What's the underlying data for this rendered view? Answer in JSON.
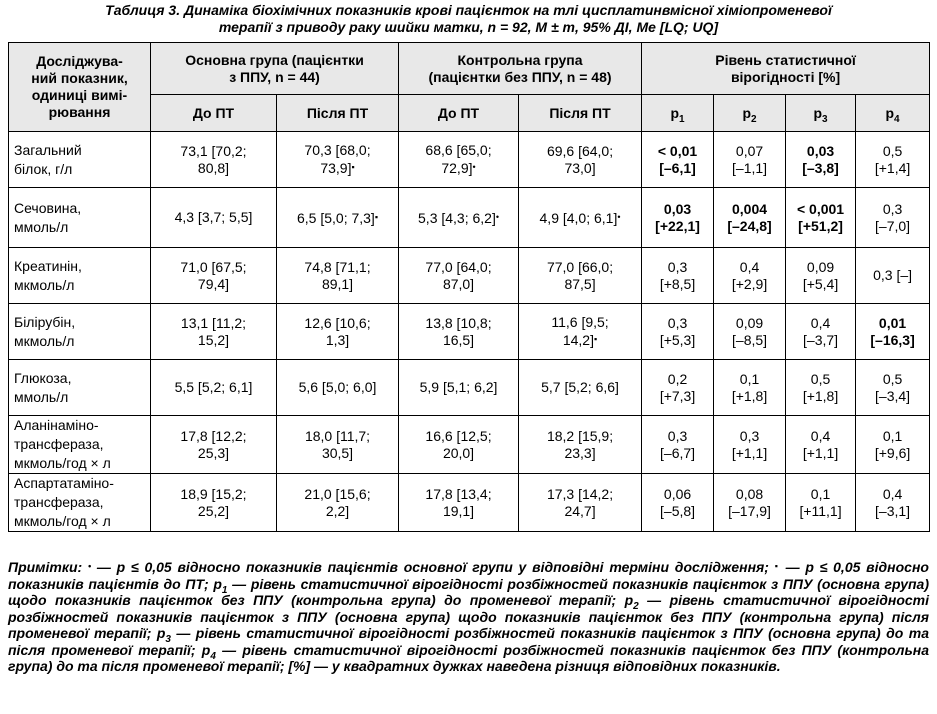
{
  "caption": {
    "line1": "Таблиця 3. Динаміка біохімічних показників крові пацієнток на тлі цисплатинвмісної хіміопроменевої",
    "line2": "терапії з приводу раку шийки матки, n = 92, M ± m, 95% ДІ, Me [LQ; UQ]"
  },
  "header": {
    "indicator": [
      "Досліджува-",
      "ний показник,",
      "одиниці вимі-",
      "рювання"
    ],
    "main_group": [
      "Основна група (пацієнтки",
      "з ППУ, n = 44)"
    ],
    "control_group": [
      "Контрольна група",
      "(пацієнтки без ППУ, n = 48)"
    ],
    "significance": [
      "Рівень статистичної",
      "вірогідності [%]"
    ],
    "before": "До ПТ",
    "after": "Після ПТ",
    "p": "p",
    "p_subs": [
      "1",
      "2",
      "3",
      "4"
    ]
  },
  "rows": [
    {
      "ind": [
        "Загальний",
        "білок, г/л"
      ],
      "mb": [
        "73,1 [70,2;",
        "80,8]"
      ],
      "ma": [
        "70,3 [68,0;",
        "73,9]"
      ],
      "ma_mark": "▪",
      "cb": [
        "68,6 [65,0;",
        "72,9]"
      ],
      "cb_mark": "•",
      "ca": [
        "69,6 [64,0;",
        "73,0]"
      ],
      "p1": [
        "< 0,01",
        "[–6,1]"
      ],
      "p1_bold": true,
      "p2": [
        "0,07",
        "[–1,1]"
      ],
      "p2_bold": false,
      "p3": [
        "0,03",
        "[–3,8]"
      ],
      "p3_bold": true,
      "p4": [
        "0,5",
        "[+1,4]"
      ],
      "p4_bold": false
    },
    {
      "ind": [
        "Сечовина,",
        "ммоль/л"
      ],
      "mb": [
        "4,3 [3,7; 5,5]"
      ],
      "ma": [
        "6,5 [5,0; 7,3]"
      ],
      "ma_mark": "▪",
      "cb": [
        "5,3 [4,3; 6,2]"
      ],
      "cb_mark": "•",
      "ca": [
        "4,9 [4,0; 6,1]"
      ],
      "ca_mark": "•",
      "p1": [
        "0,03",
        "[+22,1]"
      ],
      "p1_bold": true,
      "p2": [
        "0,004",
        "[–24,8]"
      ],
      "p2_bold": true,
      "p3": [
        "< 0,001",
        "[+51,2]"
      ],
      "p3_bold": true,
      "p4": [
        "0,3",
        "[–7,0]"
      ],
      "p4_bold": false
    },
    {
      "ind": [
        "Креатинін,",
        "мкмоль/л"
      ],
      "mb": [
        "71,0 [67,5;",
        "79,4]"
      ],
      "ma": [
        "74,8 [71,1;",
        "89,1]"
      ],
      "cb": [
        "77,0 [64,0;",
        "87,0]"
      ],
      "ca": [
        "77,0 [66,0;",
        "87,5]"
      ],
      "p1": [
        "0,3",
        "[+8,5]"
      ],
      "p1_bold": false,
      "p2": [
        "0,4",
        "[+2,9]"
      ],
      "p2_bold": false,
      "p3": [
        "0,09",
        "[+5,4]"
      ],
      "p3_bold": false,
      "p4": [
        "0,3 [–]"
      ],
      "p4_bold": false
    },
    {
      "ind": [
        "Білірубін,",
        "мкмоль/л"
      ],
      "mb": [
        "13,1 [11,2;",
        "15,2]"
      ],
      "ma": [
        "12,6 [10,6;",
        "1,3]"
      ],
      "cb": [
        "13,8 [10,8;",
        "16,5]"
      ],
      "ca": [
        "11,6 [9,5;",
        "14,2]"
      ],
      "ca_mark": "▪",
      "p1": [
        "0,3",
        "[+5,3]"
      ],
      "p1_bold": false,
      "p2": [
        "0,09",
        "[–8,5]"
      ],
      "p2_bold": false,
      "p3": [
        "0,4",
        "[–3,7]"
      ],
      "p3_bold": false,
      "p4": [
        "0,01",
        "[–16,3]"
      ],
      "p4_bold": true
    },
    {
      "ind": [
        "Глюкоза,",
        "ммоль/л"
      ],
      "mb": [
        "5,5 [5,2; 6,1]"
      ],
      "ma": [
        "5,6 [5,0; 6,0]"
      ],
      "cb": [
        "5,9 [5,1; 6,2]"
      ],
      "ca": [
        "5,7 [5,2; 6,6]"
      ],
      "p1": [
        "0,2",
        "[+7,3]"
      ],
      "p1_bold": false,
      "p2": [
        "0,1",
        "[+1,8]"
      ],
      "p2_bold": false,
      "p3": [
        "0,5",
        "[+1,8]"
      ],
      "p3_bold": false,
      "p4": [
        "0,5",
        "[–3,4]"
      ],
      "p4_bold": false
    },
    {
      "ind": [
        "Аланінаміно-",
        "трансфераза,",
        "мкмоль/год × л"
      ],
      "mb": [
        "17,8 [12,2;",
        "25,3]"
      ],
      "ma": [
        "18,0 [11,7;",
        "30,5]"
      ],
      "cb": [
        "16,6 [12,5;",
        "20,0]"
      ],
      "ca": [
        "18,2 [15,9;",
        "23,3]"
      ],
      "p1": [
        "0,3",
        "[–6,7]"
      ],
      "p1_bold": false,
      "p2": [
        "0,3",
        "[+1,1]"
      ],
      "p2_bold": false,
      "p3": [
        "0,4",
        "[+1,1]"
      ],
      "p3_bold": false,
      "p4": [
        "0,1",
        "[+9,6]"
      ],
      "p4_bold": false
    },
    {
      "ind": [
        "Аспартатаміно-",
        "трансфераза,",
        "мкмоль/год × л"
      ],
      "mb": [
        "18,9 [15,2;",
        "25,2]"
      ],
      "ma": [
        "21,0 [15,6;",
        "2,2]"
      ],
      "cb": [
        "17,8 [13,4;",
        "19,1]"
      ],
      "ca": [
        "17,3 [14,2;",
        "24,7]"
      ],
      "p1": [
        "0,06",
        "[–5,8]"
      ],
      "p1_bold": false,
      "p2": [
        "0,08",
        "[–17,9]"
      ],
      "p2_bold": false,
      "p3": [
        "0,1",
        "[+11,1]"
      ],
      "p3_bold": false,
      "p4": [
        "0,4",
        "[–3,1]"
      ],
      "p4_bold": false
    }
  ],
  "notes": [
    {
      "t": "Примітки: "
    },
    {
      "t": "•",
      "mark": true
    },
    {
      "t": " — p ≤ 0,05 відносно показників пацієнтів основної групи у відповідні терміни дослідження; "
    },
    {
      "t": "▪",
      "mark": true
    },
    {
      "t": " — p ≤ 0,05 відносно показників пацієнтів до ПТ; p"
    },
    {
      "t": "1",
      "sub": true
    },
    {
      "t": " — рівень статистичної вірогідності розбіжностей показників пацієнток з ППУ (основна група) щодо показників пацієнток без ППУ (контрольна група) до променевої терапії; p"
    },
    {
      "t": "2",
      "sub": true
    },
    {
      "t": " — рівень статистичної вірогідності розбіжностей показників пацієнток з ППУ (основна група) щодо показників пацієнток без ППУ (контрольна група) після променевої терапії; p"
    },
    {
      "t": "3",
      "sub": true
    },
    {
      "t": " — рівень статистичної вірогідності розбіжностей показників пацієнток з ППУ (основна група) до та після променевої терапії; p"
    },
    {
      "t": "4",
      "sub": true
    },
    {
      "t": " — рівень статистичної вірогідності розбіжностей показників пацієнток без ППУ (контрольна група) до та після променевої терапії; [%] — у квадратних дужках наведена різниця відповідних показників."
    }
  ]
}
